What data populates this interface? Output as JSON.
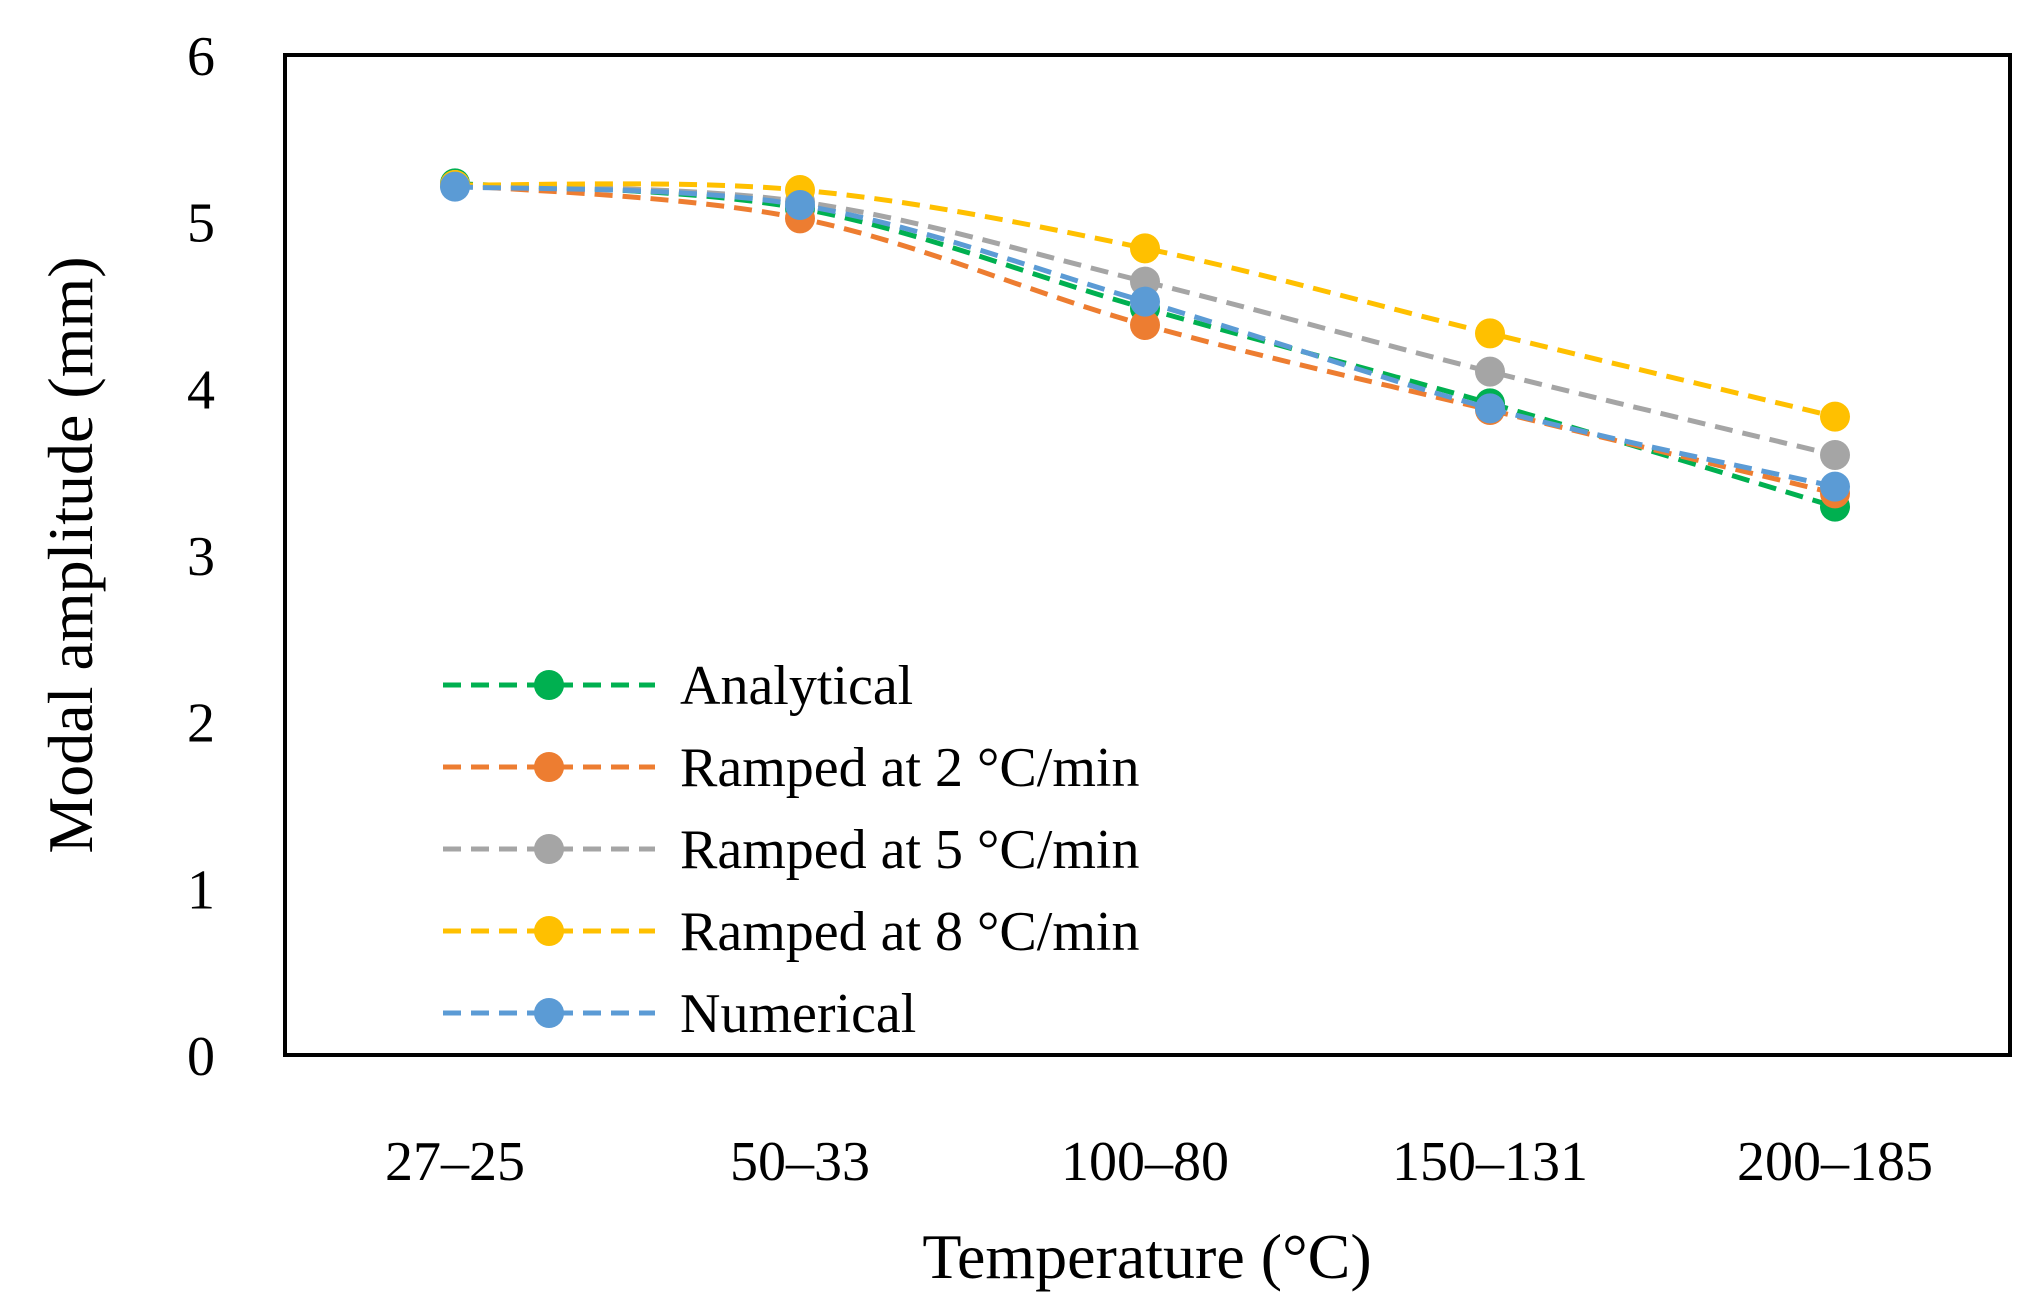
{
  "chart_data": {
    "type": "line",
    "title": "",
    "xlabel": "Temperature (°C)",
    "ylabel": "Modal amplitude (mm)",
    "categories": [
      "27–25",
      "50–33",
      "100–80",
      "150–131",
      "200–185"
    ],
    "ylim": [
      0,
      6
    ],
    "yticks": [
      "0",
      "1",
      "2",
      "3",
      "4",
      "5",
      "6"
    ],
    "grid": false,
    "legend_position": "bottom-left",
    "series": [
      {
        "name": "Analytical",
        "color": "#00b050",
        "values": [
          5.23,
          5.08,
          4.48,
          3.91,
          3.29
        ]
      },
      {
        "name": "Ramped at 2 °C/min",
        "color": "#ed7d31",
        "values": [
          5.22,
          5.02,
          4.38,
          3.87,
          3.37
        ]
      },
      {
        "name": "Ramped at 5 °C/min",
        "color": "#a5a5a5",
        "values": [
          5.22,
          5.12,
          4.64,
          4.1,
          3.6
        ]
      },
      {
        "name": "Ramped at 8 °C/min",
        "color": "#ffc000",
        "values": [
          5.22,
          5.19,
          4.84,
          4.33,
          3.83
        ]
      },
      {
        "name": "Numerical",
        "color": "#5b9bd5",
        "values": [
          5.21,
          5.1,
          4.52,
          3.88,
          3.41
        ]
      }
    ]
  }
}
